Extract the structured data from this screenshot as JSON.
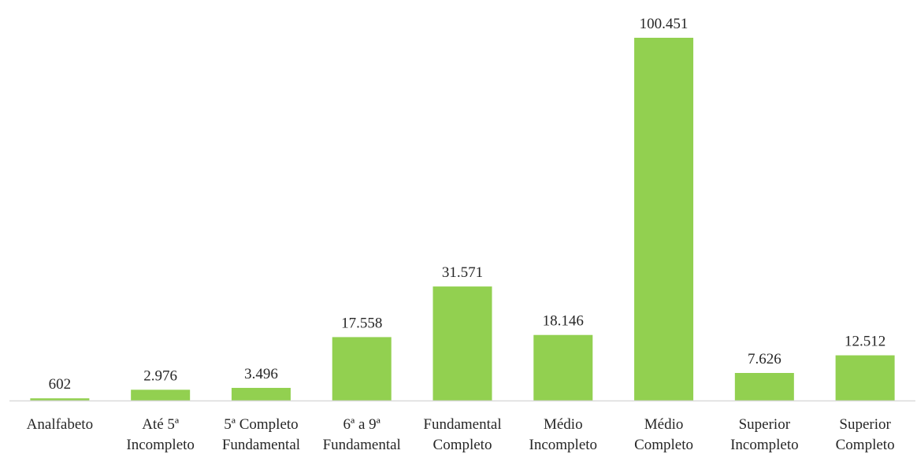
{
  "chart_data": {
    "type": "bar",
    "title": "",
    "xlabel": "",
    "ylabel": "",
    "categories": [
      [
        "Analfabeto"
      ],
      [
        "Até 5ª",
        "Incompleto"
      ],
      [
        "5ª Completo",
        "Fundamental"
      ],
      [
        "6ª a 9ª",
        "Fundamental"
      ],
      [
        "Fundamental",
        "Completo"
      ],
      [
        "Médio",
        "Incompleto"
      ],
      [
        "Médio",
        "Completo"
      ],
      [
        "Superior",
        "Incompleto"
      ],
      [
        "Superior",
        "Completo"
      ]
    ],
    "values": [
      602,
      2976,
      3496,
      17558,
      31571,
      18146,
      100451,
      7626,
      12512
    ],
    "data_labels": [
      "602",
      "2.976",
      "3.496",
      "17.558",
      "31.571",
      "18.146",
      "100.451",
      "7.626",
      "12.512"
    ],
    "ylim": [
      0,
      100451
    ],
    "grid": false,
    "legend": "none",
    "bar_color": "#92d050",
    "axis_color": "#d9d9d9"
  }
}
